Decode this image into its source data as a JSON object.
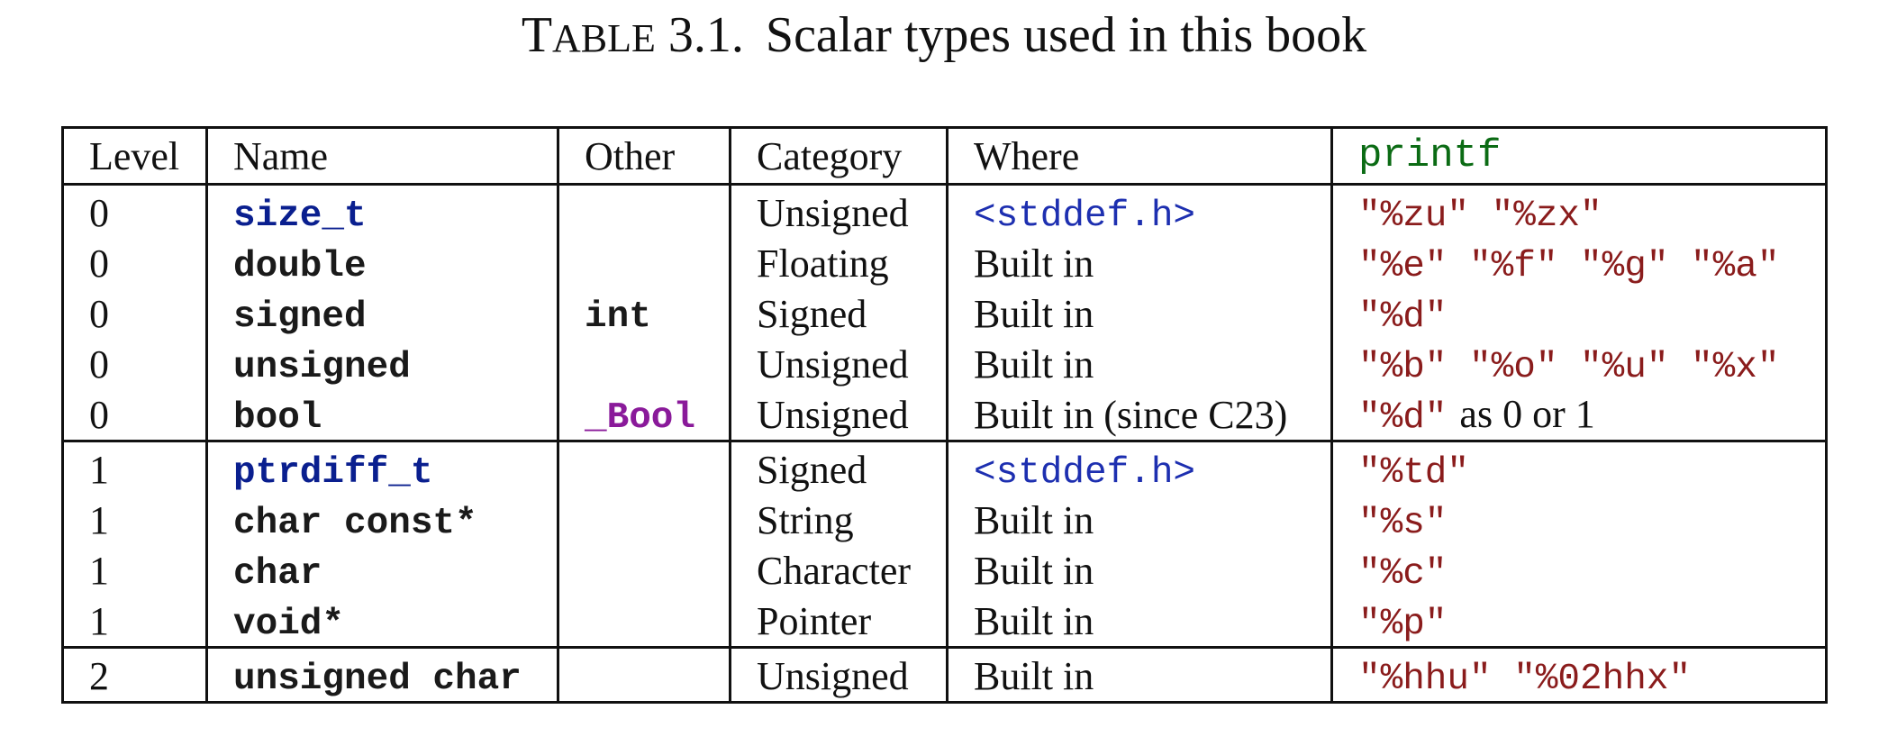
{
  "caption": {
    "label_first": "T",
    "label_rest": "able",
    "number": "3.1.",
    "text": "Scalar types used in this book"
  },
  "table": {
    "headers": [
      "Level",
      "Name",
      "Other",
      "Category",
      "Where",
      "printf"
    ],
    "groups": [
      {
        "rows": [
          {
            "level": "0",
            "name": "size_t",
            "name_style": "typedef",
            "other": "",
            "category": "Unsigned",
            "where": "<stddef.h>",
            "where_style": "header",
            "printf": "\"%zu\" \"%zx\"",
            "printf_note": ""
          },
          {
            "level": "0",
            "name": "double",
            "name_style": "keyword",
            "other": "",
            "category": "Floating",
            "where": "Built in",
            "where_style": "text",
            "printf": "\"%e\" \"%f\" \"%g\" \"%a\"",
            "printf_note": ""
          },
          {
            "level": "0",
            "name": "signed",
            "name_style": "keyword",
            "other": "int",
            "category": "Signed",
            "where": "Built in",
            "where_style": "text",
            "printf": "\"%d\"",
            "printf_note": ""
          },
          {
            "level": "0",
            "name": "unsigned",
            "name_style": "keyword",
            "other": "",
            "category": "Unsigned",
            "where": "Built in",
            "where_style": "text",
            "printf": "\"%b\" \"%o\" \"%u\" \"%x\"",
            "printf_note": ""
          },
          {
            "level": "0",
            "name": "bool",
            "name_style": "keyword",
            "other": "_Bool",
            "category": "Unsigned",
            "where": "Built in (since C23)",
            "where_style": "text",
            "printf": "\"%d\"",
            "printf_note": "as 0 or 1"
          }
        ]
      },
      {
        "rows": [
          {
            "level": "1",
            "name": "ptrdiff_t",
            "name_style": "typedef",
            "other": "",
            "category": "Signed",
            "where": "<stddef.h>",
            "where_style": "header",
            "printf": "\"%td\"",
            "printf_note": ""
          },
          {
            "level": "1",
            "name": "char const*",
            "name_style": "keyword",
            "other": "",
            "category": "String",
            "where": "Built in",
            "where_style": "text",
            "printf": "\"%s\"",
            "printf_note": ""
          },
          {
            "level": "1",
            "name": "char",
            "name_style": "keyword",
            "other": "",
            "category": "Character",
            "where": "Built in",
            "where_style": "text",
            "printf": "\"%c\"",
            "printf_note": ""
          },
          {
            "level": "1",
            "name": "void*",
            "name_style": "keyword",
            "other": "",
            "category": "Pointer",
            "where": "Built in",
            "where_style": "text",
            "printf": "\"%p\"",
            "printf_note": ""
          }
        ]
      },
      {
        "rows": [
          {
            "level": "2",
            "name": "unsigned char",
            "name_style": "keyword",
            "other": "",
            "category": "Unsigned",
            "where": "Built in",
            "where_style": "text",
            "printf": "\"%hhu\" \"%02hhx\"",
            "printf_note": ""
          }
        ]
      }
    ]
  }
}
